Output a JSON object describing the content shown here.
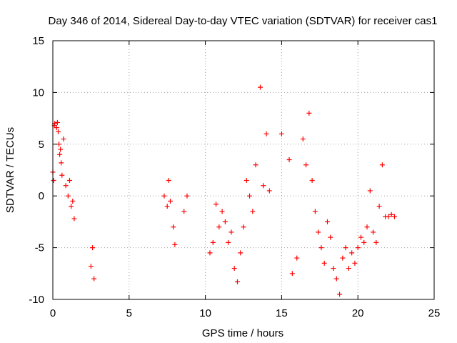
{
  "chart_data": {
    "type": "scatter",
    "title": "Day 346 of 2014, Sidereal Day-to-day VTEC variation (SDTVAR) for receiver cas1",
    "xlabel": "GPS time / hours",
    "ylabel": "SDTVAR / TECUs",
    "xlim": [
      0,
      25
    ],
    "ylim": [
      -10,
      15
    ],
    "xticks": [
      0,
      5,
      10,
      15,
      20,
      25
    ],
    "yticks": [
      -10,
      -5,
      0,
      5,
      10,
      15
    ],
    "xtick_labels": [
      "0",
      "5",
      "10",
      "15",
      "20",
      "25"
    ],
    "ytick_labels": [
      "-10",
      "-5",
      "0",
      "5",
      "10",
      "15"
    ],
    "grid": true,
    "marker": "+",
    "color": "#ff0000",
    "series": [
      {
        "name": "SDTVAR",
        "x": [
          0.0,
          0.05,
          0.1,
          0.12,
          0.25,
          0.3,
          0.35,
          0.4,
          0.45,
          0.5,
          0.55,
          0.6,
          0.7,
          0.85,
          1.0,
          1.1,
          1.2,
          1.3,
          1.4,
          2.5,
          2.6,
          2.7,
          7.3,
          7.5,
          7.6,
          7.7,
          7.9,
          8.0,
          8.6,
          8.8,
          10.3,
          10.5,
          10.7,
          10.9,
          11.1,
          11.3,
          11.5,
          11.7,
          11.9,
          12.1,
          12.3,
          12.5,
          12.7,
          12.9,
          13.1,
          13.3,
          13.6,
          13.8,
          14.0,
          14.2,
          15.0,
          15.5,
          15.7,
          16.0,
          16.4,
          16.6,
          16.8,
          17.0,
          17.2,
          17.4,
          17.6,
          17.8,
          18.0,
          18.2,
          18.4,
          18.6,
          18.8,
          19.0,
          19.2,
          19.4,
          19.6,
          19.8,
          20.0,
          20.2,
          20.4,
          20.6,
          20.8,
          21.0,
          21.2,
          21.4,
          21.6,
          21.8,
          22.0,
          22.2,
          22.4
        ],
        "y": [
          2.3,
          1.5,
          6.8,
          7.0,
          6.6,
          7.1,
          6.2,
          5.0,
          4.0,
          4.5,
          3.2,
          2.0,
          5.5,
          1.0,
          0.0,
          1.5,
          -1.0,
          -0.5,
          -2.2,
          -6.8,
          -5.0,
          -8.0,
          0.0,
          -1.0,
          1.5,
          -0.5,
          -3.0,
          -4.7,
          -1.5,
          0.0,
          -5.5,
          -4.5,
          -0.8,
          -3.0,
          -1.5,
          -2.5,
          -4.5,
          -3.5,
          -7.0,
          -8.3,
          -5.5,
          -3.0,
          1.5,
          0.0,
          -1.5,
          3.0,
          10.5,
          1.0,
          6.0,
          0.5,
          6.0,
          3.5,
          -7.5,
          -6.0,
          5.5,
          3.0,
          8.0,
          1.5,
          -1.5,
          -3.5,
          -5.0,
          -6.5,
          -2.5,
          -4.0,
          -7.0,
          -8.0,
          -9.5,
          -6.0,
          -5.0,
          -7.0,
          -5.5,
          -6.5,
          -5.0,
          -4.0,
          -4.5,
          -3.0,
          0.5,
          -3.5,
          -4.5,
          -1.0,
          3.0,
          -2.0,
          -2.0,
          -1.8,
          -2.0
        ]
      }
    ]
  }
}
